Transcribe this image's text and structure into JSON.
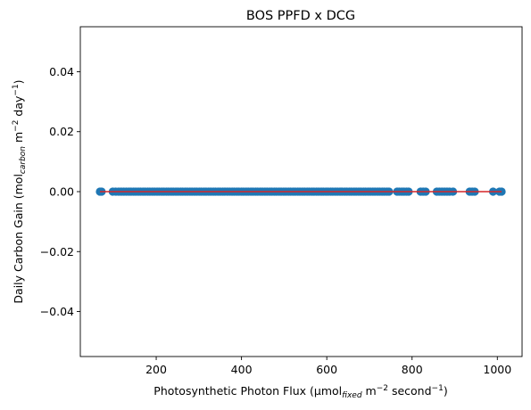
{
  "chart_data": {
    "type": "scatter",
    "title": "BOS PPFD x DCG",
    "xlabel": {
      "main": "Photosynthetic Photon Flux (μmol",
      "sub": "fixed",
      "mid": " m",
      "sup1": "−2",
      "end": " second",
      "sup2": "−1",
      "close": ")"
    },
    "ylabel": {
      "main": "Daily Carbon Gain (mol",
      "sub": "carbon",
      "mid": " m",
      "sup1": "−2",
      "end": " day",
      "sup2": "−1",
      "close": ")"
    },
    "xlim": [
      22,
      1058
    ],
    "ylim": [
      -0.055,
      0.055
    ],
    "xticks": [
      200,
      400,
      600,
      800,
      1000
    ],
    "xtick_labels": [
      "200",
      "400",
      "600",
      "800",
      "1000"
    ],
    "yticks": [
      -0.04,
      -0.02,
      0.0,
      0.02,
      0.04
    ],
    "ytick_labels": [
      "−0.04",
      "−0.02",
      "0.00",
      "0.02",
      "0.04"
    ],
    "grid": false,
    "legend": "none",
    "colors": {
      "points": "#1f77b4",
      "fit_line": "#d62728",
      "axes": "#000000"
    },
    "series": [
      {
        "x": [
          68,
          72,
          98,
          105,
          112,
          118,
          124,
          130,
          136,
          141,
          147,
          152,
          158,
          163,
          169,
          174,
          180,
          185,
          191,
          196,
          202,
          207,
          213,
          218,
          224,
          229,
          235,
          240,
          246,
          251,
          257,
          262,
          268,
          273,
          279,
          284,
          290,
          295,
          301,
          306,
          312,
          317,
          323,
          328,
          334,
          339,
          345,
          350,
          356,
          361,
          367,
          372,
          378,
          383,
          389,
          394,
          400,
          405,
          411,
          416,
          422,
          427,
          433,
          438,
          444,
          449,
          455,
          460,
          466,
          471,
          477,
          482,
          488,
          493,
          499,
          504,
          510,
          515,
          521,
          526,
          532,
          537,
          543,
          548,
          554,
          559,
          565,
          570,
          576,
          581,
          587,
          592,
          598,
          603,
          609,
          614,
          620,
          625,
          631,
          636,
          642,
          647,
          653,
          658,
          664,
          669,
          675,
          680,
          686,
          691,
          697,
          702,
          708,
          713,
          719,
          724,
          730,
          735,
          741,
          746,
          765,
          770,
          776,
          781,
          787,
          792,
          820,
          826,
          832,
          858,
          864,
          870,
          876,
          882,
          888,
          896,
          935,
          941,
          947,
          990,
          1005,
          1010
        ],
        "y_value": 0.0
      }
    ],
    "fit_line": {
      "x": [
        68,
        1010
      ],
      "y": [
        0.0,
        0.0
      ]
    }
  }
}
